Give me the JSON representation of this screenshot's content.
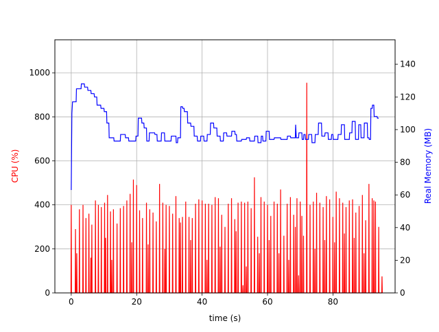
{
  "chart_data": {
    "type": "line",
    "xlabel": "time (s)",
    "ylabel_left": "CPU (%)",
    "ylabel_right": "Real Memory (MB)",
    "xlim": [
      -5,
      99
    ],
    "ylim_left": [
      0,
      1150
    ],
    "ylim_right": [
      0,
      155
    ],
    "x_ticks": [
      0,
      20,
      40,
      60,
      80
    ],
    "y_ticks_left": [
      0,
      200,
      400,
      600,
      800,
      1000
    ],
    "y_ticks_right": [
      0,
      20,
      40,
      60,
      80,
      100,
      120,
      140
    ],
    "grid": true,
    "colors": {
      "cpu": "#ff0000",
      "memory": "#0000ff",
      "cpu_label": "#ff0000",
      "memory_label": "#0000ff"
    },
    "cpu_peaks": [
      [
        0.0,
        400
      ],
      [
        1.3,
        290
      ],
      [
        2.5,
        380
      ],
      [
        3.6,
        400
      ],
      [
        4.5,
        340
      ],
      [
        5.4,
        360
      ],
      [
        6.3,
        310
      ],
      [
        7.4,
        420
      ],
      [
        8.3,
        400
      ],
      [
        9.2,
        390
      ],
      [
        10.2,
        410
      ],
      [
        11.1,
        445
      ],
      [
        12.0,
        370
      ],
      [
        12.9,
        380
      ],
      [
        14.0,
        315
      ],
      [
        15.0,
        385
      ],
      [
        16.0,
        395
      ],
      [
        17.0,
        420
      ],
      [
        18.0,
        450
      ],
      [
        19.0,
        515
      ],
      [
        20.0,
        490
      ],
      [
        20.9,
        375
      ],
      [
        21.8,
        340
      ],
      [
        23.0,
        410
      ],
      [
        24.0,
        380
      ],
      [
        25.0,
        365
      ],
      [
        26.0,
        325
      ],
      [
        27.0,
        495
      ],
      [
        28.0,
        410
      ],
      [
        29.0,
        400
      ],
      [
        30.0,
        395
      ],
      [
        31.0,
        360
      ],
      [
        32.0,
        440
      ],
      [
        33.0,
        340
      ],
      [
        34.0,
        345
      ],
      [
        35.0,
        415
      ],
      [
        36.0,
        345
      ],
      [
        37.0,
        340
      ],
      [
        38.0,
        405
      ],
      [
        39.0,
        425
      ],
      [
        40.0,
        420
      ],
      [
        41.0,
        405
      ],
      [
        42.0,
        405
      ],
      [
        43.0,
        400
      ],
      [
        44.0,
        435
      ],
      [
        45.0,
        430
      ],
      [
        46.0,
        355
      ],
      [
        47.0,
        300
      ],
      [
        48.0,
        405
      ],
      [
        49.0,
        430
      ],
      [
        50.0,
        335
      ],
      [
        51.0,
        410
      ],
      [
        52.0,
        415
      ],
      [
        53.0,
        410
      ],
      [
        54.0,
        415
      ],
      [
        55.0,
        385
      ],
      [
        56.0,
        525
      ],
      [
        57.0,
        255
      ],
      [
        58.0,
        435
      ],
      [
        59.0,
        415
      ],
      [
        60.0,
        400
      ],
      [
        61.0,
        350
      ],
      [
        62.0,
        415
      ],
      [
        63.0,
        405
      ],
      [
        64.0,
        470
      ],
      [
        65.0,
        260
      ],
      [
        66.0,
        405
      ],
      [
        67.0,
        435
      ],
      [
        68.0,
        355
      ],
      [
        69.0,
        430
      ],
      [
        70.0,
        415
      ],
      [
        71.0,
        260
      ],
      [
        72.0,
        955
      ],
      [
        73.0,
        400
      ],
      [
        74.0,
        415
      ],
      [
        75.0,
        455
      ],
      [
        76.0,
        410
      ],
      [
        77.0,
        390
      ],
      [
        78.0,
        440
      ],
      [
        79.0,
        425
      ],
      [
        80.0,
        345
      ],
      [
        81.0,
        460
      ],
      [
        82.0,
        430
      ],
      [
        83.0,
        410
      ],
      [
        84.0,
        390
      ],
      [
        85.0,
        420
      ],
      [
        86.0,
        425
      ],
      [
        87.0,
        365
      ],
      [
        88.0,
        395
      ],
      [
        89.0,
        445
      ],
      [
        90.0,
        330
      ],
      [
        91.0,
        495
      ],
      [
        92.0,
        430
      ],
      [
        93.0,
        415
      ],
      [
        94.0,
        300
      ],
      [
        95.0,
        75
      ]
    ],
    "cpu_inner_peaks": [
      [
        1.7,
        180
      ],
      [
        6.0,
        160
      ],
      [
        10.5,
        250
      ],
      [
        12.4,
        150
      ],
      [
        18.5,
        230
      ],
      [
        23.5,
        220
      ],
      [
        28.6,
        200
      ],
      [
        33.4,
        320
      ],
      [
        36.5,
        240
      ],
      [
        41.5,
        150
      ],
      [
        45.5,
        210
      ],
      [
        50.4,
        280
      ],
      [
        52.5,
        35
      ],
      [
        53.5,
        120
      ],
      [
        57.5,
        180
      ],
      [
        60.5,
        240
      ],
      [
        63.5,
        180
      ],
      [
        66.5,
        150
      ],
      [
        68.5,
        300
      ],
      [
        69.5,
        80
      ],
      [
        70.5,
        350
      ],
      [
        74.5,
        200
      ],
      [
        77.5,
        240
      ],
      [
        80.5,
        230
      ],
      [
        83.5,
        270
      ],
      [
        86.5,
        250
      ],
      [
        89.5,
        180
      ],
      [
        92.5,
        420
      ]
    ],
    "memory": [
      [
        0.0,
        63
      ],
      [
        0.2,
        110
      ],
      [
        0.4,
        117
      ],
      [
        1.5,
        117
      ],
      [
        1.6,
        125
      ],
      [
        3.0,
        125
      ],
      [
        3.1,
        128
      ],
      [
        4.0,
        128
      ],
      [
        4.1,
        126
      ],
      [
        5.0,
        126
      ],
      [
        5.1,
        124
      ],
      [
        6.0,
        124
      ],
      [
        6.1,
        122
      ],
      [
        7.0,
        122
      ],
      [
        7.1,
        120
      ],
      [
        7.8,
        120
      ],
      [
        7.9,
        115
      ],
      [
        9.0,
        115
      ],
      [
        9.1,
        113
      ],
      [
        10.0,
        113
      ],
      [
        10.1,
        111
      ],
      [
        10.8,
        111
      ],
      [
        10.9,
        104
      ],
      [
        11.5,
        104
      ],
      [
        11.6,
        95
      ],
      [
        13.0,
        95
      ],
      [
        13.1,
        93
      ],
      [
        15.0,
        93
      ],
      [
        15.1,
        97
      ],
      [
        16.5,
        97
      ],
      [
        16.6,
        95
      ],
      [
        17.5,
        95
      ],
      [
        17.6,
        93
      ],
      [
        19.7,
        93
      ],
      [
        19.8,
        96
      ],
      [
        20.4,
        96
      ],
      [
        20.5,
        107
      ],
      [
        21.5,
        107
      ],
      [
        21.6,
        104
      ],
      [
        22.2,
        104
      ],
      [
        22.3,
        101
      ],
      [
        23.0,
        101
      ],
      [
        23.1,
        93
      ],
      [
        23.8,
        93
      ],
      [
        23.9,
        98
      ],
      [
        25.5,
        98
      ],
      [
        25.6,
        97
      ],
      [
        26.2,
        97
      ],
      [
        26.3,
        93
      ],
      [
        27.5,
        93
      ],
      [
        27.6,
        98
      ],
      [
        28.5,
        98
      ],
      [
        28.6,
        93
      ],
      [
        30.5,
        93
      ],
      [
        30.6,
        96
      ],
      [
        32.0,
        96
      ],
      [
        32.1,
        92
      ],
      [
        32.5,
        92
      ],
      [
        32.6,
        95
      ],
      [
        33.4,
        95
      ],
      [
        33.5,
        114
      ],
      [
        34.0,
        114
      ],
      [
        34.1,
        113
      ],
      [
        34.5,
        113
      ],
      [
        34.6,
        111
      ],
      [
        35.5,
        111
      ],
      [
        35.6,
        104
      ],
      [
        36.5,
        104
      ],
      [
        36.6,
        102
      ],
      [
        37.5,
        102
      ],
      [
        37.6,
        96
      ],
      [
        38.5,
        96
      ],
      [
        38.6,
        93
      ],
      [
        39.5,
        93
      ],
      [
        39.6,
        96
      ],
      [
        40.5,
        96
      ],
      [
        40.6,
        93
      ],
      [
        41.5,
        93
      ],
      [
        41.6,
        97
      ],
      [
        42.5,
        97
      ],
      [
        42.6,
        104
      ],
      [
        43.5,
        104
      ],
      [
        43.6,
        101
      ],
      [
        44.5,
        101
      ],
      [
        44.6,
        96
      ],
      [
        45.5,
        96
      ],
      [
        45.6,
        93
      ],
      [
        46.5,
        93
      ],
      [
        46.6,
        98
      ],
      [
        47.5,
        98
      ],
      [
        47.6,
        96
      ],
      [
        49.0,
        96
      ],
      [
        49.1,
        99
      ],
      [
        50.0,
        99
      ],
      [
        50.1,
        97
      ],
      [
        50.5,
        97
      ],
      [
        50.6,
        93
      ],
      [
        52.0,
        93
      ],
      [
        52.1,
        94
      ],
      [
        53.5,
        94
      ],
      [
        53.6,
        95
      ],
      [
        54.5,
        95
      ],
      [
        54.6,
        93
      ],
      [
        56.0,
        93
      ],
      [
        56.1,
        96
      ],
      [
        57.0,
        96
      ],
      [
        57.1,
        92
      ],
      [
        58.0,
        92
      ],
      [
        58.1,
        96
      ],
      [
        58.5,
        96
      ],
      [
        58.6,
        93
      ],
      [
        59.5,
        93
      ],
      [
        59.6,
        99
      ],
      [
        60.5,
        99
      ],
      [
        60.6,
        94
      ],
      [
        62.0,
        94
      ],
      [
        62.1,
        95
      ],
      [
        64.0,
        95
      ],
      [
        64.1,
        94
      ],
      [
        66.0,
        94
      ],
      [
        66.1,
        96
      ],
      [
        67.0,
        96
      ],
      [
        67.1,
        95
      ],
      [
        68.5,
        95
      ],
      [
        68.6,
        103
      ],
      [
        68.8,
        95
      ],
      [
        69.5,
        95
      ],
      [
        69.6,
        98
      ],
      [
        70.5,
        98
      ],
      [
        70.6,
        94
      ],
      [
        71.0,
        94
      ],
      [
        71.1,
        97
      ],
      [
        71.5,
        97
      ],
      [
        71.6,
        94
      ],
      [
        72.5,
        94
      ],
      [
        72.6,
        97
      ],
      [
        73.5,
        97
      ],
      [
        73.6,
        92
      ],
      [
        74.5,
        92
      ],
      [
        74.6,
        97
      ],
      [
        75.5,
        97
      ],
      [
        75.6,
        104
      ],
      [
        76.5,
        104
      ],
      [
        76.6,
        96
      ],
      [
        77.5,
        96
      ],
      [
        77.6,
        98
      ],
      [
        78.5,
        98
      ],
      [
        78.6,
        94
      ],
      [
        79.5,
        94
      ],
      [
        79.6,
        97
      ],
      [
        80.0,
        97
      ],
      [
        80.1,
        94
      ],
      [
        81.5,
        94
      ],
      [
        81.6,
        97
      ],
      [
        82.5,
        97
      ],
      [
        82.6,
        103
      ],
      [
        83.5,
        103
      ],
      [
        83.6,
        94
      ],
      [
        85.0,
        94
      ],
      [
        85.1,
        98
      ],
      [
        85.8,
        98
      ],
      [
        85.9,
        105
      ],
      [
        86.8,
        105
      ],
      [
        86.9,
        94
      ],
      [
        87.8,
        94
      ],
      [
        87.9,
        103
      ],
      [
        88.5,
        103
      ],
      [
        88.6,
        95
      ],
      [
        89.5,
        95
      ],
      [
        89.6,
        104
      ],
      [
        90.5,
        104
      ],
      [
        90.6,
        95
      ],
      [
        91.0,
        95
      ],
      [
        91.1,
        94
      ],
      [
        91.5,
        94
      ],
      [
        91.6,
        113
      ],
      [
        92.0,
        113
      ],
      [
        92.1,
        115
      ],
      [
        92.5,
        115
      ],
      [
        92.6,
        108
      ],
      [
        93.5,
        108
      ],
      [
        93.6,
        107
      ],
      [
        94.0,
        107
      ]
    ]
  }
}
